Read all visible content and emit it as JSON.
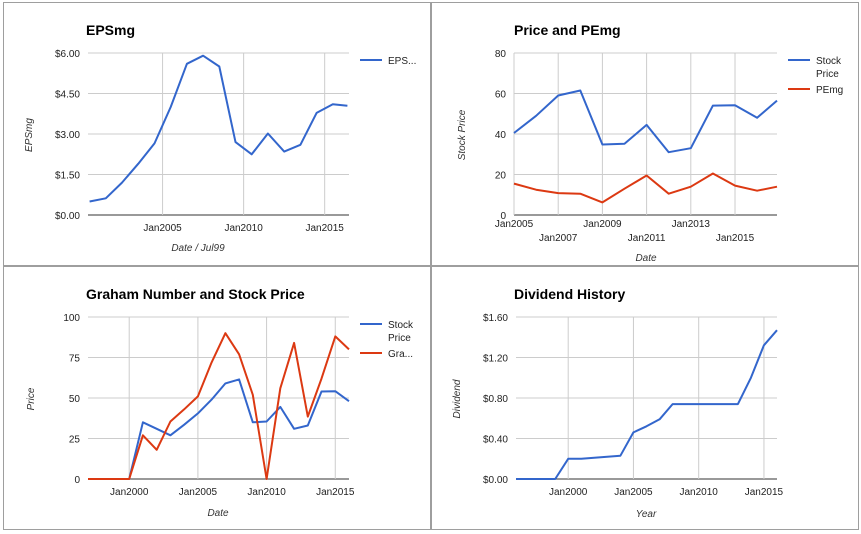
{
  "colors": {
    "blue": "#3366cc",
    "red": "#dc3912"
  },
  "chart_data": [
    {
      "type": "line",
      "title": "EPSmg",
      "xlabel": "Date / Jul99",
      "ylabel": "EPSmg",
      "x_ticks": [
        "Jan2005",
        "Jan2010",
        "Jan2015"
      ],
      "x_tick_values": [
        2005,
        2010,
        2015
      ],
      "y_ticks": [
        "$0.00",
        "$1.50",
        "$3.00",
        "$4.50",
        "$6.00"
      ],
      "y_tick_values": [
        0,
        1.5,
        3,
        4.5,
        6
      ],
      "xlim": [
        2000.4,
        2016.5
      ],
      "ylim": [
        0,
        6
      ],
      "legend_position": "right",
      "series": [
        {
          "name": "EPS...",
          "color": "#3366cc",
          "x": [
            2000.5,
            2001.5,
            2002.5,
            2003.5,
            2004.5,
            2005.5,
            2006.5,
            2007.5,
            2008.5,
            2009.5,
            2010.5,
            2011.5,
            2012.5,
            2013.5,
            2014.5,
            2015.5,
            2016.4
          ],
          "y": [
            0.5,
            0.62,
            1.2,
            1.9,
            2.65,
            4.0,
            5.6,
            5.9,
            5.5,
            2.7,
            2.25,
            3.02,
            2.35,
            2.6,
            3.78,
            4.1,
            4.05
          ]
        }
      ]
    },
    {
      "type": "line",
      "title": "Price and PEmg",
      "xlabel": "Date",
      "ylabel": "Stock Price",
      "x_ticks": [
        "Jan2005",
        "Jan2007",
        "Jan2009",
        "Jan2011",
        "Jan2013",
        "Jan2015"
      ],
      "x_tick_values": [
        2005,
        2007,
        2009,
        2011,
        2013,
        2015
      ],
      "y_ticks": [
        "0",
        "20",
        "40",
        "60",
        "80"
      ],
      "y_tick_values": [
        0,
        20,
        40,
        60,
        80
      ],
      "xlim": [
        2005,
        2016.9
      ],
      "ylim": [
        0,
        80
      ],
      "legend_position": "right",
      "series": [
        {
          "name": "Stock Price",
          "color": "#3366cc",
          "x": [
            2005,
            2006,
            2007,
            2008,
            2009,
            2010,
            2011,
            2012,
            2013,
            2014,
            2015,
            2016,
            2016.9
          ],
          "y": [
            40.5,
            49,
            59,
            61.5,
            34.8,
            35.2,
            44.5,
            31,
            33,
            54,
            54.2,
            48,
            56.5
          ]
        },
        {
          "name": "PEmg",
          "color": "#dc3912",
          "x": [
            2005,
            2006,
            2007,
            2008,
            2009,
            2010,
            2011,
            2012,
            2013,
            2014,
            2015,
            2016,
            2016.9
          ],
          "y": [
            15.5,
            12.5,
            10.8,
            10.5,
            6.2,
            13,
            19.5,
            10.5,
            14,
            20.5,
            14.5,
            12,
            14
          ]
        }
      ]
    },
    {
      "type": "line",
      "title": "Graham Number and Stock Price",
      "xlabel": "Date",
      "ylabel": "Price",
      "x_ticks": [
        "Jan2000",
        "Jan2005",
        "Jan2010",
        "Jan2015"
      ],
      "x_tick_values": [
        2000,
        2005,
        2010,
        2015
      ],
      "y_ticks": [
        "0",
        "25",
        "50",
        "75",
        "100"
      ],
      "y_tick_values": [
        0,
        25,
        50,
        75,
        100
      ],
      "xlim": [
        1997,
        2016
      ],
      "ylim": [
        0,
        100
      ],
      "legend_position": "right",
      "series": [
        {
          "name": "Stock Price",
          "color": "#3366cc",
          "x": [
            1997,
            1998,
            1999,
            2000,
            2001,
            2002,
            2003,
            2004,
            2005,
            2006,
            2007,
            2008,
            2009,
            2010,
            2011,
            2012,
            2013,
            2014,
            2015,
            2016
          ],
          "y": [
            0,
            0,
            0,
            0,
            35,
            31,
            27,
            33.5,
            40.5,
            49,
            59,
            61.5,
            35,
            35.5,
            44.5,
            31,
            33,
            54,
            54.2,
            48
          ]
        },
        {
          "name": "Gra...",
          "color": "#dc3912",
          "x": [
            1997,
            1998,
            1999,
            2000,
            2001,
            2002,
            2003,
            2004,
            2005,
            2006,
            2007,
            2008,
            2009,
            2010,
            2011,
            2012,
            2013,
            2014,
            2015,
            2016
          ],
          "y": [
            0,
            0,
            0,
            0,
            27,
            18,
            35.5,
            43,
            51,
            72,
            90,
            77,
            52,
            0,
            56,
            84,
            38.5,
            62,
            88,
            80
          ]
        }
      ]
    },
    {
      "type": "line",
      "title": "Dividend History",
      "xlabel": "Year",
      "ylabel": "Dividend",
      "x_ticks": [
        "Jan2000",
        "Jan2005",
        "Jan2010",
        "Jan2015"
      ],
      "x_tick_values": [
        2000,
        2005,
        2010,
        2015
      ],
      "y_ticks": [
        "$0.00",
        "$0.40",
        "$0.80",
        "$1.20",
        "$1.60"
      ],
      "y_tick_values": [
        0,
        0.4,
        0.8,
        1.2,
        1.6
      ],
      "xlim": [
        1996,
        2016
      ],
      "ylim": [
        0,
        1.6
      ],
      "legend_position": "none",
      "series": [
        {
          "name": "",
          "color": "#3366cc",
          "x": [
            1996,
            1997,
            1998,
            1999,
            2000,
            2001,
            2002,
            2003,
            2004,
            2005,
            2006,
            2007,
            2008,
            2009,
            2010,
            2011,
            2012,
            2013,
            2014,
            2015,
            2016
          ],
          "y": [
            0,
            0,
            0,
            0,
            0.2,
            0.2,
            0.21,
            0.22,
            0.23,
            0.46,
            0.52,
            0.59,
            0.74,
            0.74,
            0.74,
            0.74,
            0.74,
            0.74,
            1.0,
            1.32,
            1.47
          ]
        }
      ]
    }
  ]
}
